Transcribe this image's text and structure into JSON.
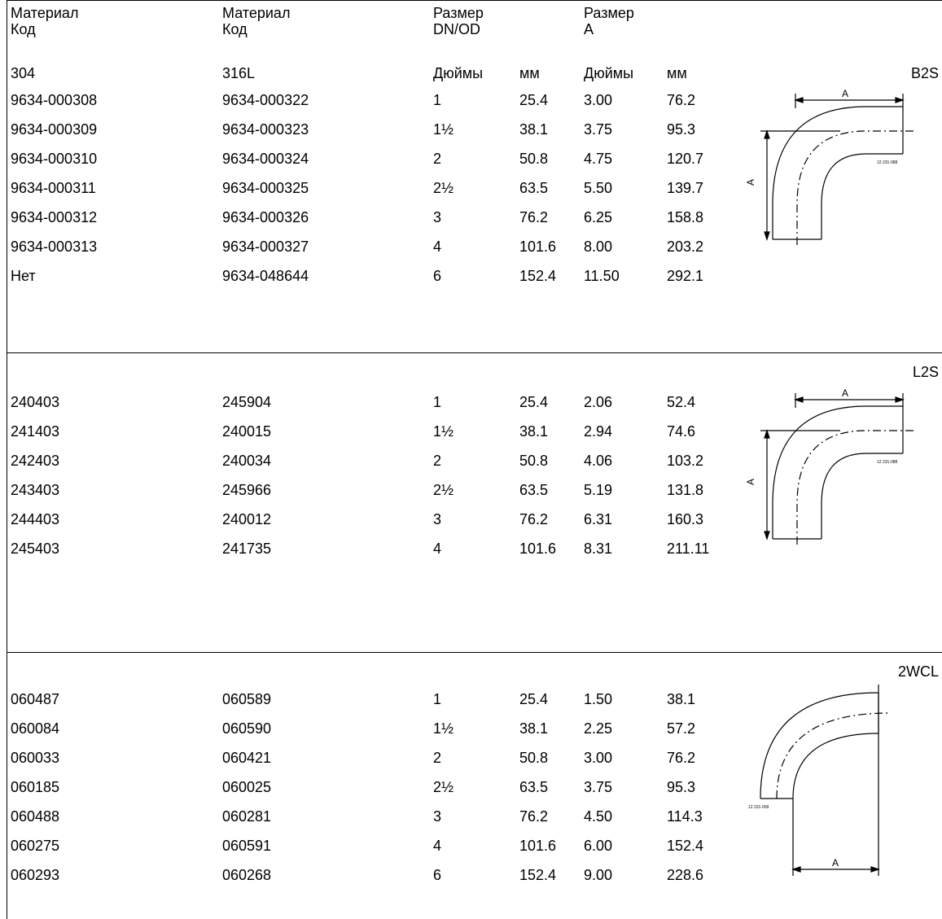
{
  "header": {
    "col1": [
      "Материал",
      "Код"
    ],
    "col2": [
      "Материал",
      "Код"
    ],
    "col3": [
      "Размер",
      "DN/OD"
    ],
    "col4": [
      "Размер",
      "A"
    ]
  },
  "subheader": {
    "mat1": "304",
    "mat2": "316L",
    "inch1": "Дюймы",
    "mm1": "мм",
    "inch2": "Дюймы",
    "mm2": "мм"
  },
  "sections": [
    {
      "code": "B2S",
      "drawing_tag": "12 231-088",
      "rows": [
        [
          "9634-000308",
          "9634-000322",
          "1",
          "25.4",
          "3.00",
          "76.2"
        ],
        [
          "9634-000309",
          "9634-000323",
          "1½",
          "38.1",
          "3.75",
          "95.3"
        ],
        [
          "9634-000310",
          "9634-000324",
          "2",
          "50.8",
          "4.75",
          "120.7"
        ],
        [
          "9634-000311",
          "9634-000325",
          "2½",
          "63.5",
          "5.50",
          "139.7"
        ],
        [
          "9634-000312",
          "9634-000326",
          "3",
          "76.2",
          "6.25",
          "158.8"
        ],
        [
          "9634-000313",
          "9634-000327",
          "4",
          "101.6",
          "8.00",
          "203.2"
        ],
        [
          "Нет",
          "9634-048644",
          "6",
          "152.4",
          "11.50",
          "292.1"
        ]
      ]
    },
    {
      "code": "L2S",
      "drawing_tag": "12 231-088",
      "rows": [
        [
          "240403",
          "245904",
          "1",
          "25.4",
          "2.06",
          "52.4"
        ],
        [
          "241403",
          "240015",
          "1½",
          "38.1",
          "2.94",
          "74.6"
        ],
        [
          "242403",
          "240034",
          "2",
          "50.8",
          "4.06",
          "103.2"
        ],
        [
          "243403",
          "245966",
          "2½",
          "63.5",
          "5.19",
          "131.8"
        ],
        [
          "244403",
          "240012",
          "3",
          "76.2",
          "6.31",
          "160.3"
        ],
        [
          "245403",
          "241735",
          "4",
          "101.6",
          "8.31",
          "211.11"
        ]
      ]
    },
    {
      "code": "2WCL",
      "drawing_tag": "12 231-009",
      "rows": [
        [
          "060487",
          "060589",
          "1",
          "25.4",
          "1.50",
          "38.1"
        ],
        [
          "060084",
          "060590",
          "1½",
          "38.1",
          "2.25",
          "57.2"
        ],
        [
          "060033",
          "060421",
          "2",
          "50.8",
          "3.00",
          "76.2"
        ],
        [
          "060185",
          "060025",
          "2½",
          "63.5",
          "3.75",
          "95.3"
        ],
        [
          "060488",
          "060281",
          "3",
          "76.2",
          "4.50",
          "114.3"
        ],
        [
          "060275",
          "060591",
          "4",
          "101.6",
          "6.00",
          "152.4"
        ],
        [
          "060293",
          "060268",
          "6",
          "152.4",
          "9.00",
          "228.6"
        ]
      ]
    }
  ],
  "dimension_label": "A"
}
